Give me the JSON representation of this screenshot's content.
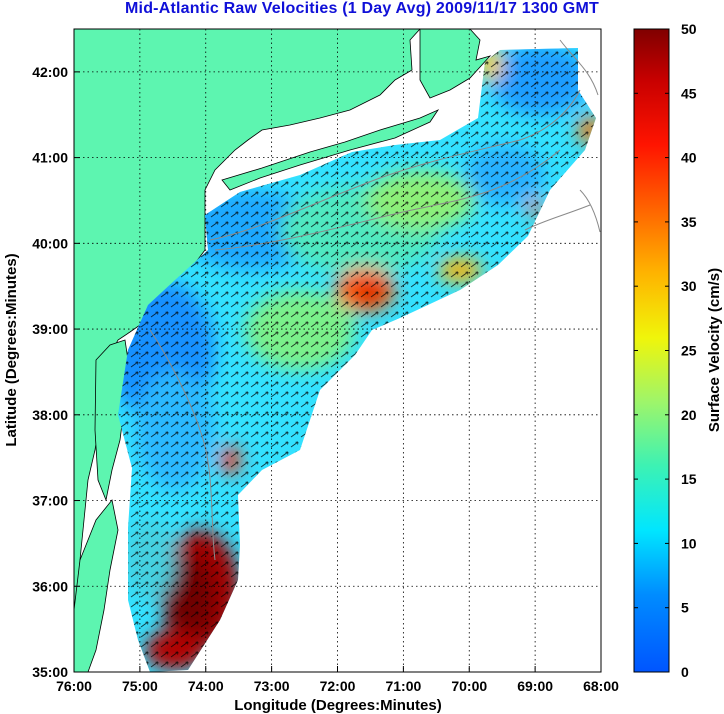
{
  "title": "Mid-Atlantic Raw Velocities (1 Day Avg) 2009/11/17 1300 GMT",
  "axes": {
    "xlabel": "Longitude (Degrees:Minutes)",
    "ylabel": "Latitude (Degrees:Minutes)",
    "xticks": [
      "76:00",
      "75:00",
      "74:00",
      "73:00",
      "72:00",
      "71:00",
      "70:00",
      "69:00",
      "68:00"
    ],
    "yticks": [
      "42:00",
      "41:00",
      "40:00",
      "39:00",
      "38:00",
      "37:00",
      "36:00",
      "35:00"
    ],
    "xrange_deg_west": [
      76,
      68
    ],
    "yrange_deg_north": [
      35,
      42.5
    ],
    "grid": "dotted"
  },
  "colorbar": {
    "label": "Surface Velocity (cm/s)",
    "ticks": [
      "50",
      "45",
      "40",
      "35",
      "30",
      "25",
      "20",
      "15",
      "10",
      "5",
      "0"
    ],
    "min": 0,
    "max": 50,
    "colormap": "jet"
  },
  "colors": {
    "land": "#5df5b0",
    "ocean_nodata": "#ffffff",
    "title": "#1010d8",
    "arrow": "#000000",
    "bathymetry": "#8a8a8a"
  }
}
